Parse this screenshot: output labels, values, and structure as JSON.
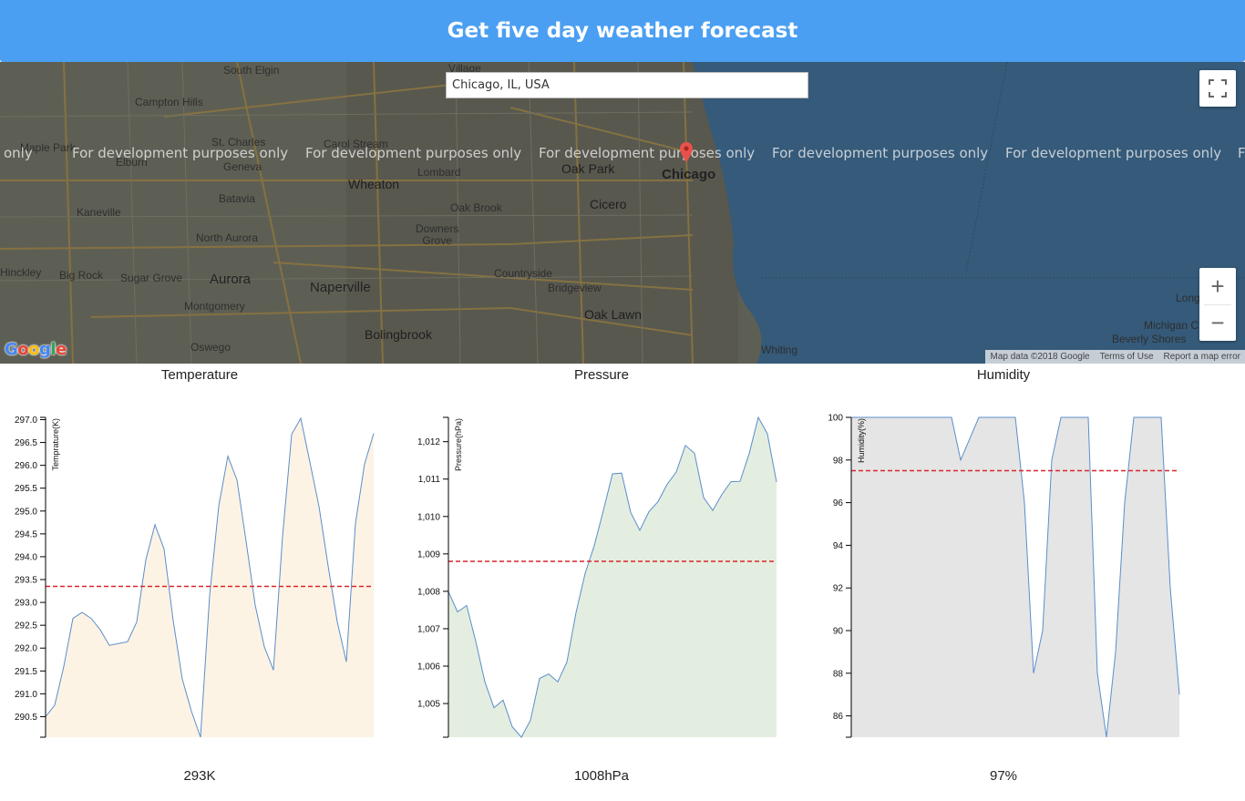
{
  "header": {
    "title": "Get five day weather forecast"
  },
  "map": {
    "search_value": "Chicago, IL, USA",
    "watermark": "For development purposes only",
    "watermark_edge_left": "only",
    "watermark_edge_right": "F",
    "labels": {
      "south_elgin": "South Elgin",
      "village": "Village",
      "campton_hills": "Campton Hills",
      "maple_park": "Maple Park",
      "st_charles": "St. Charles",
      "carol_stream": "Carol Stream",
      "elburn": "Elburn",
      "geneva": "Geneva",
      "lombard": "Lombard",
      "oak_park": "Oak Park",
      "chicago": "Chicago",
      "wheaton": "Wheaton",
      "batavia": "Batavia",
      "kaneville": "Kaneville",
      "cicero": "Cicero",
      "oak_brook": "Oak Brook",
      "downers_grove": "Downers\nGrove",
      "north_aurora": "North Aurora",
      "hinckley": "Hinckley",
      "big_rock": "Big Rock",
      "sugar_grove": "Sugar Grove",
      "aurora": "Aurora",
      "naperville": "Naperville",
      "countryside": "Countryside",
      "bridgeview": "Bridgeview",
      "montgomery": "Montgomery",
      "oak_lawn": "Oak Lawn",
      "bolingbrook": "Bolingbrook",
      "oswego": "Oswego",
      "whiting": "Whiting",
      "long": "Long",
      "michigan_c": "Michigan C",
      "beverly_shores": "Beverly Shores"
    },
    "attribution": {
      "map_data": "Map data ©2018 Google",
      "terms": "Terms of Use",
      "report": "Report a map error"
    },
    "google_logo": "Google",
    "zoom_in": "+",
    "zoom_out": "−"
  },
  "charts": {
    "temperature": {
      "title": "Temperature",
      "value": "293K"
    },
    "pressure": {
      "title": "Pressure",
      "value": "1008hPa"
    },
    "humidity": {
      "title": "Humidity",
      "value": "97%"
    }
  },
  "chart_data": [
    {
      "type": "area",
      "title": "Temperature",
      "ylabel": "Temprature(K)",
      "ylim": [
        290.05,
        297.05
      ],
      "yticks": [
        290.5,
        291.0,
        291.5,
        292.0,
        292.5,
        293.0,
        293.5,
        294.0,
        294.5,
        295.0,
        295.5,
        296.0,
        296.5,
        297.0
      ],
      "ytick_decimals": 1,
      "average": 293.35,
      "fill": "#fdf3e5",
      "line": "#5b8ec9",
      "values": [
        290.5,
        290.75,
        291.6,
        292.65,
        292.78,
        292.65,
        292.4,
        292.06,
        292.1,
        292.14,
        292.57,
        293.93,
        294.7,
        294.17,
        292.6,
        291.32,
        290.62,
        290.05,
        293.15,
        295.11,
        296.2,
        295.68,
        294.34,
        292.94,
        292.03,
        291.52,
        294.44,
        296.68,
        297.03,
        296.07,
        295.1,
        293.8,
        292.58,
        291.7,
        294.73,
        296.03,
        296.7
      ]
    },
    {
      "type": "area",
      "title": "Pressure",
      "ylabel": "Pressure(hPa)",
      "ylim": [
        1004.1,
        1012.65
      ],
      "yticks": [
        1005,
        1006,
        1007,
        1008,
        1009,
        1010,
        1011,
        1012
      ],
      "ytick_decimals": 0,
      "ytick_thousands": true,
      "average": 1008.8,
      "fill": "#e4eee0",
      "line": "#5b8ec9",
      "values": [
        1007.99,
        1007.45,
        1007.62,
        1006.66,
        1005.58,
        1004.89,
        1005.09,
        1004.38,
        1004.1,
        1004.55,
        1005.67,
        1005.79,
        1005.58,
        1006.11,
        1007.43,
        1008.48,
        1009.22,
        1010.16,
        1011.14,
        1011.16,
        1010.11,
        1009.63,
        1010.13,
        1010.4,
        1010.86,
        1011.19,
        1011.9,
        1011.69,
        1010.51,
        1010.16,
        1010.59,
        1010.93,
        1010.94,
        1011.68,
        1012.65,
        1012.21,
        1010.92
      ]
    },
    {
      "type": "area",
      "title": "Humidity",
      "ylabel": "Humidity(%)",
      "ylim": [
        85,
        100
      ],
      "yticks": [
        86,
        88,
        90,
        92,
        94,
        96,
        98,
        100
      ],
      "ytick_decimals": 0,
      "average": 97.5,
      "fill": "#e5e5e5",
      "line": "#5b8ec9",
      "values": [
        100,
        100,
        100,
        100,
        100,
        100,
        100,
        100,
        100,
        100,
        100,
        100,
        98,
        99,
        100,
        100,
        100,
        100,
        100,
        96,
        88,
        90,
        98,
        100,
        100,
        100,
        100,
        88,
        85,
        89,
        96,
        100,
        100,
        100,
        100,
        92,
        87
      ]
    }
  ]
}
